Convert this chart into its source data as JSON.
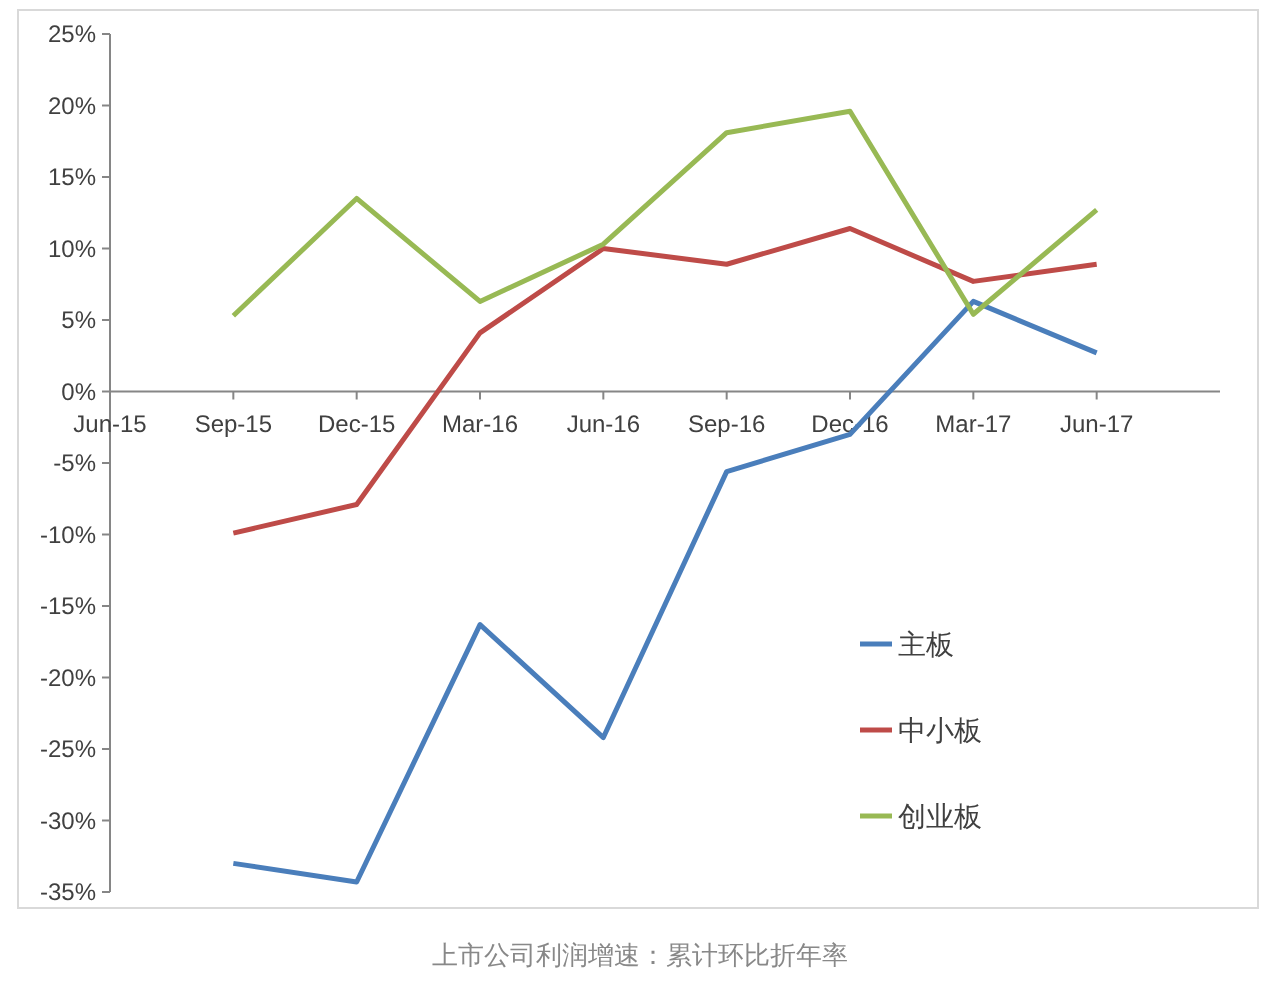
{
  "chart_data": {
    "type": "line",
    "categories": [
      "Jun-15",
      "Sep-15",
      "Dec-15",
      "Mar-16",
      "Jun-16",
      "Sep-16",
      "Dec-16",
      "Mar-17",
      "Jun-17"
    ],
    "series": [
      {
        "name": "主板",
        "color": "#4a7ebb",
        "values": [
          null,
          -33.0,
          -34.3,
          -16.3,
          -24.2,
          -5.6,
          -3.0,
          6.3,
          2.7
        ]
      },
      {
        "name": "中小板",
        "color": "#be4b48",
        "values": [
          null,
          -9.9,
          -7.9,
          4.1,
          10.0,
          8.9,
          11.4,
          7.7,
          8.9
        ]
      },
      {
        "name": "创业板",
        "color": "#98b954",
        "values": [
          null,
          5.3,
          13.5,
          6.3,
          10.3,
          18.1,
          19.6,
          5.4,
          12.7
        ]
      }
    ],
    "ylim": [
      -35,
      25
    ],
    "yticks": [
      {
        "value": 25,
        "label": "25%"
      },
      {
        "value": 20,
        "label": "20%"
      },
      {
        "value": 15,
        "label": "15%"
      },
      {
        "value": 10,
        "label": "10%"
      },
      {
        "value": 5,
        "label": "5%"
      },
      {
        "value": 0,
        "label": "0%"
      },
      {
        "value": -5,
        "label": "-5%"
      },
      {
        "value": -10,
        "label": "-10%"
      },
      {
        "value": -15,
        "label": "-15%"
      },
      {
        "value": -20,
        "label": "-20%"
      },
      {
        "value": -25,
        "label": "-25%"
      },
      {
        "value": -30,
        "label": "-30%"
      },
      {
        "value": -35,
        "label": "-35%"
      }
    ],
    "grid": false,
    "legend": "right",
    "marker": "none",
    "line_style": "solid",
    "annotations": [
      "上市公司利润增速：累计环比折年率"
    ]
  }
}
